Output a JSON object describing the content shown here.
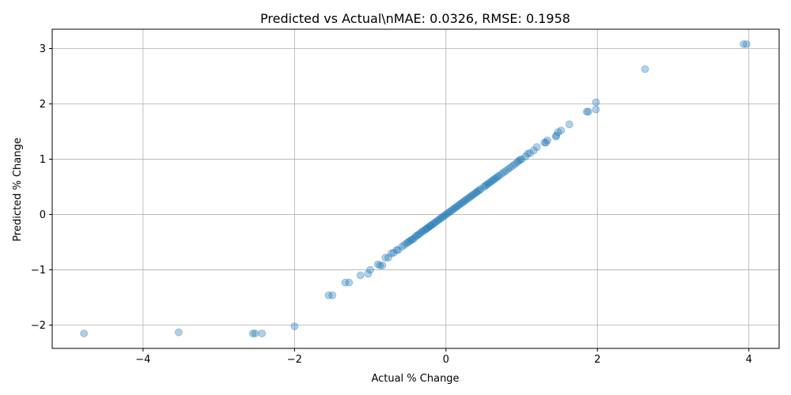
{
  "chart_data": {
    "type": "scatter",
    "title": "Predicted vs Actual\\nMAE: 0.0326, RMSE: 0.1958",
    "xlabel": "Actual % Change",
    "ylabel": "Predicted % Change",
    "xlim": [
      -5.2,
      4.4
    ],
    "ylim": [
      -2.42,
      3.35
    ],
    "xticks": [
      -4,
      -2,
      0,
      2,
      4
    ],
    "yticks": [
      -2,
      -1,
      0,
      1,
      2,
      3
    ],
    "grid": true,
    "marker_color": "#1f77b4",
    "marker_alpha": 0.35,
    "points": [
      [
        -4.78,
        -2.15
      ],
      [
        -3.53,
        -2.13
      ],
      [
        -2.55,
        -2.15
      ],
      [
        -2.52,
        -2.15
      ],
      [
        -2.43,
        -2.15
      ],
      [
        -2.0,
        -2.02
      ],
      [
        -1.55,
        -1.46
      ],
      [
        -1.5,
        -1.46
      ],
      [
        -1.33,
        -1.23
      ],
      [
        -1.28,
        -1.23
      ],
      [
        -1.13,
        -1.1
      ],
      [
        -1.03,
        -1.07
      ],
      [
        -1.0,
        -1.0
      ],
      [
        -0.9,
        -0.9
      ],
      [
        -0.87,
        -0.92
      ],
      [
        -0.84,
        -0.92
      ],
      [
        -0.8,
        -0.78
      ],
      [
        -0.76,
        -0.78
      ],
      [
        -0.72,
        -0.7
      ],
      [
        -0.69,
        -0.69
      ],
      [
        -0.65,
        -0.64
      ],
      [
        -0.63,
        -0.64
      ],
      [
        -0.58,
        -0.58
      ],
      [
        -0.55,
        -0.55
      ],
      [
        -0.52,
        -0.52
      ],
      [
        -0.5,
        -0.5
      ],
      [
        -0.48,
        -0.48
      ],
      [
        -0.46,
        -0.46
      ],
      [
        -0.44,
        -0.45
      ],
      [
        -0.42,
        -0.43
      ],
      [
        -0.4,
        -0.39
      ],
      [
        -0.38,
        -0.38
      ],
      [
        -0.36,
        -0.36
      ],
      [
        -0.34,
        -0.34
      ],
      [
        -0.32,
        -0.31
      ],
      [
        -0.3,
        -0.3
      ],
      [
        -0.28,
        -0.28
      ],
      [
        -0.26,
        -0.26
      ],
      [
        -0.25,
        -0.25
      ],
      [
        -0.23,
        -0.23
      ],
      [
        -0.21,
        -0.21
      ],
      [
        -0.2,
        -0.2
      ],
      [
        -0.18,
        -0.18
      ],
      [
        -0.16,
        -0.16
      ],
      [
        -0.14,
        -0.14
      ],
      [
        -0.12,
        -0.12
      ],
      [
        -0.1,
        -0.1
      ],
      [
        -0.08,
        -0.08
      ],
      [
        -0.06,
        -0.06
      ],
      [
        -0.04,
        -0.04
      ],
      [
        -0.02,
        -0.02
      ],
      [
        0.0,
        0.0
      ],
      [
        0.02,
        0.02
      ],
      [
        0.04,
        0.04
      ],
      [
        0.06,
        0.06
      ],
      [
        0.08,
        0.08
      ],
      [
        0.1,
        0.1
      ],
      [
        0.12,
        0.12
      ],
      [
        0.14,
        0.14
      ],
      [
        0.16,
        0.16
      ],
      [
        0.18,
        0.18
      ],
      [
        0.2,
        0.2
      ],
      [
        0.22,
        0.22
      ],
      [
        0.24,
        0.24
      ],
      [
        0.26,
        0.26
      ],
      [
        0.28,
        0.28
      ],
      [
        0.3,
        0.3
      ],
      [
        0.32,
        0.32
      ],
      [
        0.34,
        0.34
      ],
      [
        0.36,
        0.36
      ],
      [
        0.38,
        0.38
      ],
      [
        0.4,
        0.4
      ],
      [
        0.42,
        0.42
      ],
      [
        0.44,
        0.44
      ],
      [
        0.46,
        0.46
      ],
      [
        0.5,
        0.5
      ],
      [
        0.52,
        0.52
      ],
      [
        0.54,
        0.54
      ],
      [
        0.56,
        0.56
      ],
      [
        0.58,
        0.58
      ],
      [
        0.6,
        0.6
      ],
      [
        0.62,
        0.62
      ],
      [
        0.64,
        0.64
      ],
      [
        0.66,
        0.66
      ],
      [
        0.68,
        0.68
      ],
      [
        0.7,
        0.7
      ],
      [
        0.73,
        0.73
      ],
      [
        0.76,
        0.76
      ],
      [
        0.79,
        0.79
      ],
      [
        0.82,
        0.82
      ],
      [
        0.85,
        0.85
      ],
      [
        0.88,
        0.88
      ],
      [
        0.91,
        0.91
      ],
      [
        0.94,
        0.94
      ],
      [
        0.96,
        0.97
      ],
      [
        0.98,
        0.99
      ],
      [
        1.0,
        1.0
      ],
      [
        1.05,
        1.05
      ],
      [
        1.08,
        1.1
      ],
      [
        1.11,
        1.11
      ],
      [
        1.16,
        1.16
      ],
      [
        1.2,
        1.22
      ],
      [
        1.3,
        1.3
      ],
      [
        1.32,
        1.3
      ],
      [
        1.34,
        1.34
      ],
      [
        1.45,
        1.41
      ],
      [
        1.46,
        1.43
      ],
      [
        1.48,
        1.49
      ],
      [
        1.52,
        1.52
      ],
      [
        1.63,
        1.63
      ],
      [
        1.86,
        1.86
      ],
      [
        1.88,
        1.86
      ],
      [
        1.98,
        2.03
      ],
      [
        1.98,
        1.9
      ],
      [
        2.63,
        2.63
      ],
      [
        3.93,
        3.08
      ],
      [
        3.97,
        3.08
      ]
    ]
  }
}
